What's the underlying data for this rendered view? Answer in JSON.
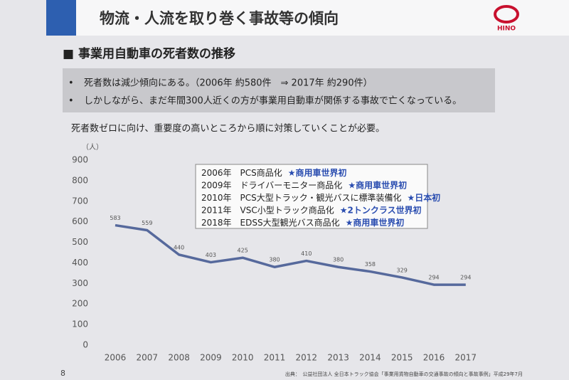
{
  "slide": {
    "title": "物流・人流を取り巻く事故等の傾向",
    "logo": "HINO",
    "heading": "■ 事業用自動車の死者数の推移",
    "bullets": [
      "死者数は減少傾向にある。（2006年 約580件　⇒ 2017年 約290件）",
      "しかしながら、まだ年間300人近くの方が事業用自動車が関係する事故で亡くなっている。"
    ],
    "note": "死者数ゼロに向け、重要度の高いところから順に対策していくことが必要。",
    "page": "8",
    "source": "出典：　公益社団法人 全日本トラック協会「事業用貨物自動車の交通事故の傾向と事故事例」平成29年7月"
  },
  "chart_data": {
    "type": "line",
    "y_label": "（人）",
    "categories": [
      "2006",
      "2007",
      "2008",
      "2009",
      "2010",
      "2011",
      "2012",
      "2013",
      "2014",
      "2015",
      "2016",
      "2017"
    ],
    "values": [
      583,
      559,
      440,
      403,
      425,
      380,
      410,
      380,
      358,
      329,
      294,
      294
    ],
    "color": "#56699c",
    "ylim": [
      0,
      900
    ],
    "yticks": [
      0,
      100,
      200,
      300,
      400,
      500,
      600,
      700,
      800,
      900
    ],
    "grid": false,
    "annotations": [
      {
        "text": "2006年　PCS商品化",
        "highlight": "★商用車世界初"
      },
      {
        "text": "2009年　ドライバーモニター商品化",
        "highlight": "★商用車世界初"
      },
      {
        "text": "2010年　PCS大型トラック・観光バスに標準装備化",
        "highlight": "★日本初"
      },
      {
        "text": "2011年　VSC小型トラック商品化",
        "highlight": "★2トンクラス世界初"
      },
      {
        "text": "2018年　EDSS大型観光バス商品化",
        "highlight": "★商用車世界初"
      }
    ]
  }
}
